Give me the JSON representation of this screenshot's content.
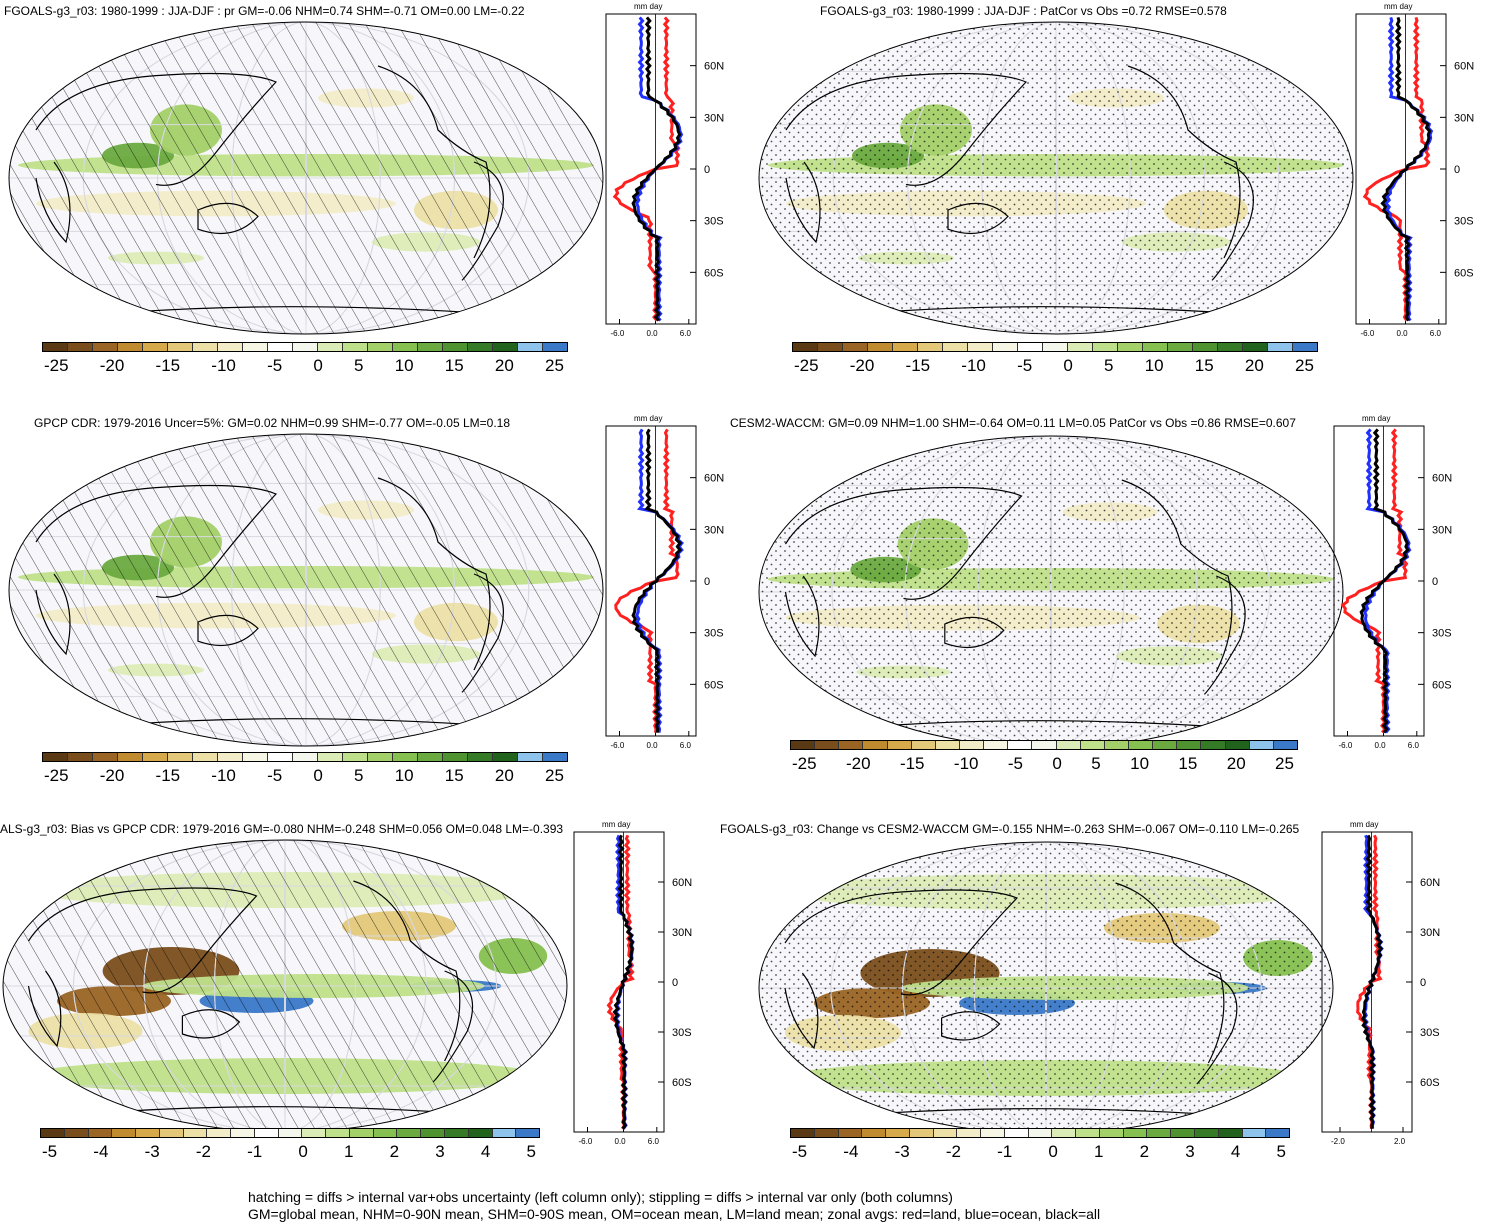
{
  "panels": [
    {
      "id": "p1",
      "title": "FGOALS-g3_r03: 1980-1999 : JJA-DJF : pr GM=-0.06 NHM=0.74 SHM=-0.71 OM=0.00 LM=-0.22",
      "units": "mm day",
      "lat_labels": [
        "60N",
        "30N",
        "0",
        "30S",
        "60S"
      ],
      "x_ticks": [
        "-6.0",
        "0.0",
        "6.0"
      ],
      "colorbar_labels": [
        "-25",
        "-20",
        "-15",
        "-10",
        "-5",
        "0",
        "5",
        "10",
        "15",
        "20",
        "25"
      ]
    },
    {
      "id": "p2",
      "title": "FGOALS-g3_r03: 1980-1999 : JJA-DJF : PatCor vs Obs =0.72 RMSE=0.578",
      "units": "mm day",
      "lat_labels": [
        "60N",
        "30N",
        "0",
        "30S",
        "60S"
      ],
      "x_ticks": [
        "-6.0",
        "0.0",
        "6.0"
      ],
      "colorbar_labels": [
        "-25",
        "-20",
        "-15",
        "-10",
        "-5",
        "0",
        "5",
        "10",
        "15",
        "20",
        "25"
      ]
    },
    {
      "id": "p3",
      "title": "GPCP CDR: 1979-2016 Uncer=5%: GM=0.02 NHM=0.99 SHM=-0.77 OM=-0.05 LM=0.18",
      "units": "mm day",
      "lat_labels": [
        "60N",
        "30N",
        "0",
        "30S",
        "60S"
      ],
      "x_ticks": [
        "-6.0",
        "0.0",
        "6.0"
      ],
      "colorbar_labels": [
        "-25",
        "-20",
        "-15",
        "-10",
        "-5",
        "0",
        "5",
        "10",
        "15",
        "20",
        "25"
      ]
    },
    {
      "id": "p4",
      "title": "CESM2-WACCM: GM=0.09 NHM=1.00 SHM=-0.64 OM=0.11 LM=0.05 PatCor vs Obs =0.86 RMSE=0.607",
      "units": "mm day",
      "lat_labels": [
        "60N",
        "30N",
        "0",
        "30S",
        "60S"
      ],
      "x_ticks": [
        "-6.0",
        "0.0",
        "6.0"
      ],
      "colorbar_labels": [
        "-25",
        "-20",
        "-15",
        "-10",
        "-5",
        "0",
        "5",
        "10",
        "15",
        "20",
        "25"
      ]
    },
    {
      "id": "p5",
      "title": "ALS-g3_r03: Bias vs GPCP CDR: 1979-2016 GM=-0.080 NHM=-0.248 SHM=0.056 OM=0.048 LM=-0.393",
      "units": "mm day",
      "lat_labels": [
        "60N",
        "30N",
        "0",
        "30S",
        "60S"
      ],
      "x_ticks": [
        "-6.0",
        "0.0",
        "6.0"
      ],
      "colorbar_labels": [
        "-5",
        "-4",
        "-3",
        "-2",
        "-1",
        "0",
        "1",
        "2",
        "3",
        "4",
        "5"
      ]
    },
    {
      "id": "p6",
      "title": "FGOALS-g3_r03: Change vs CESM2-WACCM GM=-0.155 NHM=-0.263 SHM=-0.067 OM=-0.110 LM=-0.265",
      "units": "mm day",
      "lat_labels": [
        "60N",
        "30N",
        "0",
        "30S",
        "60S"
      ],
      "x_ticks": [
        "-2.0",
        "2.0"
      ],
      "colorbar_labels": [
        "-5",
        "-4",
        "-3",
        "-2",
        "-1",
        "0",
        "1",
        "2",
        "3",
        "4",
        "5"
      ]
    }
  ],
  "colorbar_colors": [
    "#5a3a14",
    "#7a4e1c",
    "#9a6424",
    "#c08a2e",
    "#d6a94a",
    "#e3c879",
    "#ece0a6",
    "#f3ecc8",
    "#f7f5e4",
    "#ffffff",
    "#f4f7ec",
    "#dcecb6",
    "#bfe08a",
    "#a3d068",
    "#86c050",
    "#6aaa40",
    "#4f9230",
    "#357a26",
    "#21621c",
    "#8ec4ec",
    "#3a78c8"
  ],
  "line_colors": {
    "land": "#ff2020",
    "ocean": "#2030ff",
    "all": "#000000"
  },
  "caption": [
    "hatching = diffs > internal var+obs uncertainty (left column only); stippling = diffs > internal var only (both columns)",
    "GM=global mean, NHM=0-90N mean, SHM=0-90S mean, OM=ocean mean, LM=land mean; zonal avgs: red=land, blue=ocean, black=all"
  ]
}
